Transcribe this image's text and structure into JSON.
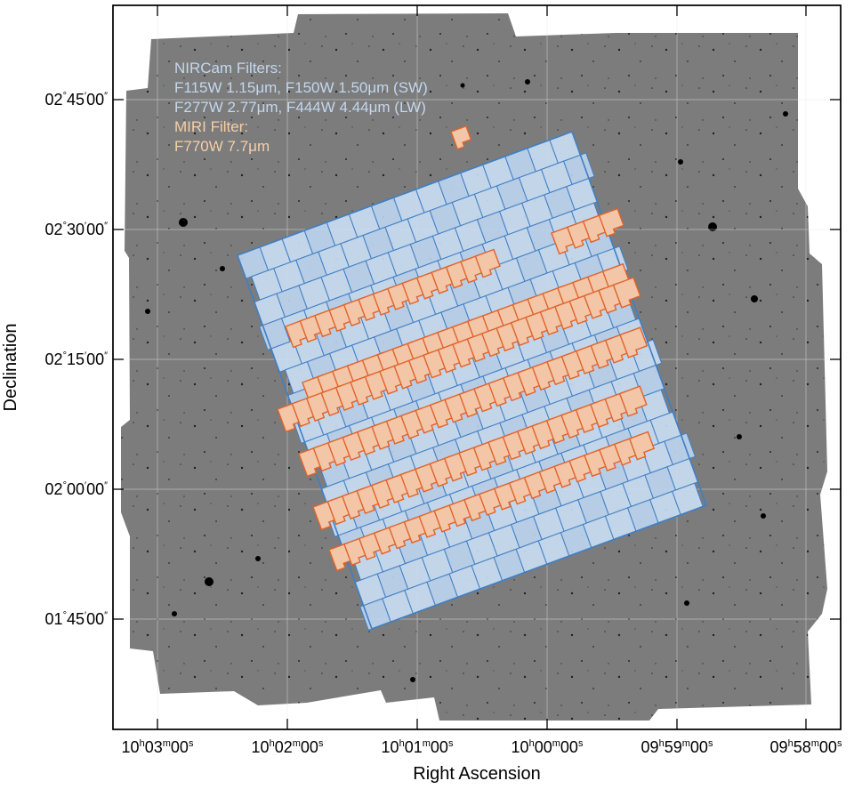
{
  "axes": {
    "xlabel": "Right Ascension",
    "ylabel": "Declination",
    "x_ticks": [
      {
        "h": "10",
        "m": "03",
        "s": "00"
      },
      {
        "h": "10",
        "m": "02",
        "s": "00"
      },
      {
        "h": "10",
        "m": "01",
        "s": "00"
      },
      {
        "h": "10",
        "m": "00",
        "s": "00"
      },
      {
        "h": "09",
        "m": "59",
        "s": "00"
      },
      {
        "h": "09",
        "m": "58",
        "s": "00"
      }
    ],
    "y_ticks": [
      {
        "d": "02",
        "m": "45",
        "s": "00"
      },
      {
        "d": "02",
        "m": "30",
        "s": "00"
      },
      {
        "d": "02",
        "m": "15",
        "s": "00"
      },
      {
        "d": "02",
        "m": "00",
        "s": "00"
      },
      {
        "d": "01",
        "m": "45",
        "s": "00"
      }
    ],
    "grid": true
  },
  "legend": {
    "nircam_title": "NIRCam Filters:",
    "nircam_sw": "F115W 1.15μm, F150W 1.50μm (SW)",
    "nircam_lw": "F277W 2.77μm, F444W 4.44μm (LW)",
    "miri_title": "MIRI Filter:",
    "miri_line": "F770W 7.7μm"
  },
  "colors": {
    "background_image": "#7c7c7c",
    "nircam_fill": "#c9dcf2",
    "nircam_edge": "#3f7fc4",
    "miri_fill": "#f3c6a8",
    "miri_edge": "#e0632a",
    "nircam_text": "#c3d7ee",
    "miri_text": "#f6cfa6"
  },
  "icons": {
    "background": "deep-sky-image-icon"
  }
}
